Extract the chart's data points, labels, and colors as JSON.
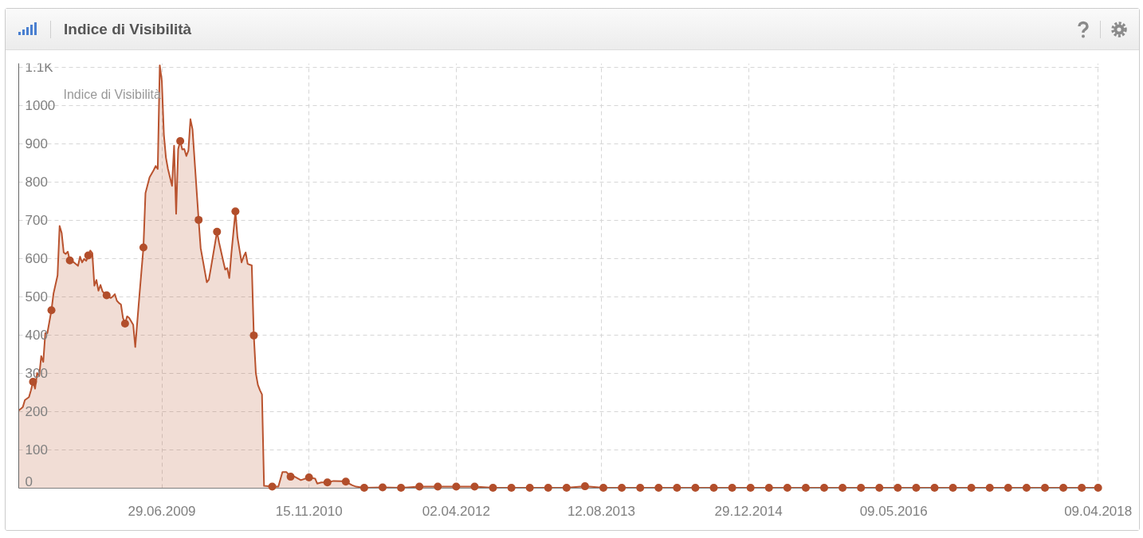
{
  "chart_data": {
    "type": "area",
    "title": "Indice di Visibilità",
    "annotations": [
      "Indice di Visibilità"
    ],
    "xlim": [
      "2008-02-25",
      "2018-04-14"
    ],
    "xticks": [
      {
        "value": "2009-06-29",
        "label": "29.06.2009"
      },
      {
        "value": "2010-11-15",
        "label": "15.11.2010"
      },
      {
        "value": "2012-04-02",
        "label": "02.04.2012"
      },
      {
        "value": "2013-08-12",
        "label": "12.08.2013"
      },
      {
        "value": "2014-12-29",
        "label": "29.12.2014"
      },
      {
        "value": "2016-05-09",
        "label": "09.05.2016"
      },
      {
        "value": "2018-04-09",
        "label": "09.04.2018"
      }
    ],
    "ylim": [
      0,
      1110
    ],
    "yticks": [
      0,
      100,
      200,
      300,
      400,
      500,
      600,
      700,
      800,
      900,
      1000,
      {
        "value": 1100,
        "label": "1.1K"
      }
    ],
    "grid": true,
    "x": [
      "2008-02-25",
      "2008-03-10",
      "2008-03-17",
      "2008-03-31",
      "2008-04-07",
      "2008-04-14",
      "2008-04-21",
      "2008-04-28",
      "2008-05-05",
      "2008-05-12",
      "2008-05-19",
      "2008-05-26",
      "2008-06-02",
      "2008-06-16",
      "2008-06-23",
      "2008-07-07",
      "2008-07-14",
      "2008-07-21",
      "2008-07-28",
      "2008-08-04",
      "2008-08-11",
      "2008-08-18",
      "2008-09-01",
      "2008-09-15",
      "2008-09-22",
      "2008-09-29",
      "2008-10-06",
      "2008-10-13",
      "2008-10-20",
      "2008-10-27",
      "2008-11-03",
      "2008-11-10",
      "2008-11-17",
      "2008-11-24",
      "2008-12-01",
      "2008-12-08",
      "2008-12-22",
      "2009-01-05",
      "2009-01-12",
      "2009-01-19",
      "2009-01-26",
      "2009-02-02",
      "2009-02-09",
      "2009-02-16",
      "2009-02-23",
      "2009-03-02",
      "2009-03-09",
      "2009-03-23",
      "2009-03-30",
      "2009-04-13",
      "2009-04-27",
      "2009-05-04",
      "2009-05-18",
      "2009-06-01",
      "2009-06-08",
      "2009-06-15",
      "2009-06-22",
      "2009-06-29",
      "2009-07-06",
      "2009-07-13",
      "2009-07-20",
      "2009-08-03",
      "2009-08-10",
      "2009-08-17",
      "2009-08-24",
      "2009-08-31",
      "2009-09-07",
      "2009-09-14",
      "2009-09-21",
      "2009-09-28",
      "2009-10-05",
      "2009-10-12",
      "2009-11-02",
      "2009-11-09",
      "2009-11-30",
      "2009-12-07",
      "2009-12-14",
      "2010-01-04",
      "2010-01-11",
      "2010-01-25",
      "2010-02-01",
      "2010-02-08",
      "2010-02-15",
      "2010-02-22",
      "2010-03-08",
      "2010-03-15",
      "2010-03-29",
      "2010-04-05",
      "2010-04-12",
      "2010-04-19",
      "2010-05-03",
      "2010-05-10",
      "2010-05-17",
      "2010-05-24",
      "2010-05-31",
      "2010-06-07",
      "2010-06-14",
      "2010-07-12",
      "2010-08-02",
      "2010-08-16",
      "2010-08-30",
      "2010-09-13",
      "2010-09-27",
      "2010-10-18",
      "2010-11-15",
      "2010-12-06",
      "2010-12-13",
      "2010-12-27",
      "2011-01-17",
      "2011-02-07",
      "2011-03-07",
      "2011-03-21",
      "2011-04-11",
      "2011-04-25",
      "2011-05-23",
      "2011-07-25",
      "2011-09-26",
      "2011-11-28",
      "2012-01-30",
      "2012-04-02",
      "2012-06-04",
      "2012-08-06",
      "2012-10-08",
      "2012-12-10",
      "2013-02-11",
      "2013-04-15",
      "2013-06-17",
      "2013-08-19",
      "2013-10-21",
      "2013-12-23",
      "2014-02-24",
      "2014-04-28",
      "2014-06-30",
      "2014-09-01",
      "2014-11-03",
      "2015-01-05",
      "2015-03-09",
      "2015-05-11",
      "2015-07-13",
      "2015-09-14",
      "2015-11-16",
      "2016-01-18",
      "2016-03-21",
      "2016-05-23",
      "2016-07-25",
      "2016-09-26",
      "2016-11-28",
      "2017-01-30",
      "2017-04-03",
      "2017-06-05",
      "2017-08-07",
      "2017-10-09",
      "2017-12-11",
      "2018-02-12",
      "2018-04-09"
    ],
    "series": [
      {
        "color": "#b9532f",
        "values": [
          203,
          212,
          230,
          238,
          256,
          278,
          260,
          301,
          293,
          345,
          330,
          405,
          405,
          465,
          508,
          556,
          685,
          667,
          616,
          612,
          618,
          595,
          590,
          581,
          605,
          590,
          599,
          594,
          608,
          621,
          614,
          529,
          544,
          516,
          531,
          514,
          504,
          497,
          501,
          507,
          490,
          484,
          480,
          445,
          430,
          449,
          445,
          427,
          369,
          501,
          629,
          771,
          812,
          831,
          842,
          834,
          1105,
          1064,
          924,
          864,
          834,
          790,
          895,
          717,
          886,
          907,
          885,
          886,
          868,
          882,
          964,
          938,
          701,
          627,
          538,
          545,
          575,
          670,
          642,
          594,
          571,
          575,
          549,
          612,
          723,
          656,
          590,
          605,
          616,
          586,
          582,
          399,
          300,
          270,
          256,
          245,
          6,
          4,
          4,
          42,
          42,
          30,
          30,
          21,
          28,
          25,
          12,
          15,
          15,
          19,
          18,
          17,
          8,
          4,
          1,
          2,
          1,
          4,
          4,
          4,
          4,
          1,
          1,
          1,
          1,
          1,
          5,
          1,
          1,
          1,
          1,
          1,
          1,
          1,
          1,
          1,
          1,
          1,
          1,
          1,
          1,
          1,
          1,
          1,
          1,
          1,
          1,
          1,
          1,
          1,
          1,
          1,
          1,
          1,
          1
        ]
      },
      {
        "type": "scatter",
        "color": "#b24e2b",
        "marker": "circle",
        "x": [
          "2008-04-14",
          "2008-06-16",
          "2008-08-18",
          "2008-10-20",
          "2008-12-22",
          "2009-02-23",
          "2009-04-27",
          "2009-08-31",
          "2009-11-02",
          "2010-01-04",
          "2010-03-08",
          "2010-05-10",
          "2010-07-12",
          "2010-09-13",
          "2010-11-15",
          "2011-01-17",
          "2011-03-21",
          "2011-05-23",
          "2011-07-25",
          "2011-09-26",
          "2011-11-28",
          "2012-01-30",
          "2012-04-02",
          "2012-06-04",
          "2012-08-06",
          "2012-10-08",
          "2012-12-10",
          "2013-02-11",
          "2013-04-15",
          "2013-06-17",
          "2013-08-19",
          "2013-10-21",
          "2013-12-23",
          "2014-02-24",
          "2014-04-28",
          "2014-06-30",
          "2014-09-01",
          "2014-11-03",
          "2015-01-05",
          "2015-03-09",
          "2015-05-11",
          "2015-07-13",
          "2015-09-14",
          "2015-11-16",
          "2016-01-18",
          "2016-03-21",
          "2016-05-23",
          "2016-07-25",
          "2016-09-26",
          "2016-11-28",
          "2017-01-30",
          "2017-04-03",
          "2017-06-05",
          "2017-08-07",
          "2017-10-09",
          "2017-12-11",
          "2018-02-12",
          "2018-04-09"
        ],
        "values": [
          278,
          465,
          595,
          608,
          504,
          430,
          629,
          907,
          701,
          670,
          723,
          399,
          4,
          30,
          28,
          15,
          17,
          1,
          2,
          1,
          4,
          4,
          4,
          4,
          1,
          1,
          1,
          1,
          1,
          5,
          1,
          1,
          1,
          1,
          1,
          1,
          1,
          1,
          1,
          1,
          1,
          1,
          1,
          1,
          1,
          1,
          1,
          1,
          1,
          1,
          1,
          1,
          1,
          1,
          1,
          1,
          1,
          1
        ]
      }
    ]
  }
}
